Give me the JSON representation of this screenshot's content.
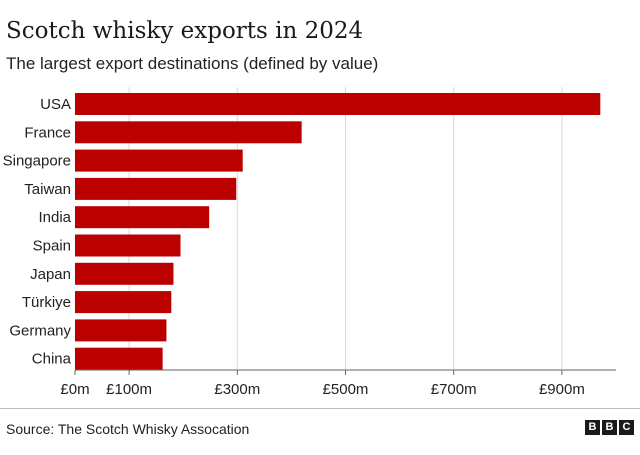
{
  "title": "Scotch whisky exports in 2024",
  "subtitle": "The largest export destinations (defined by value)",
  "source": "Source: The Scotch Whisky Assocation",
  "logo": [
    "B",
    "B",
    "C"
  ],
  "colors": {
    "bar": "#bb0000",
    "grid": "#d9d9d9",
    "axis": "#666666",
    "text": "#222222"
  },
  "chart_data": {
    "type": "bar",
    "orientation": "horizontal",
    "categories": [
      "USA",
      "France",
      "Singapore",
      "Taiwan",
      "India",
      "Spain",
      "Japan",
      "Türkiye",
      "Germany",
      "China"
    ],
    "values": [
      971,
      419,
      310,
      298,
      248,
      195,
      182,
      178,
      169,
      162
    ],
    "unit": "£m",
    "xlim": [
      0,
      1000
    ],
    "xticks": [
      0,
      100,
      300,
      500,
      700,
      900
    ],
    "xtick_labels": [
      "£0m",
      "£100m",
      "£300m",
      "£500m",
      "£700m",
      "£900m"
    ],
    "grid": true,
    "title": "Scotch whisky exports in 2024",
    "xlabel": "",
    "ylabel": ""
  }
}
